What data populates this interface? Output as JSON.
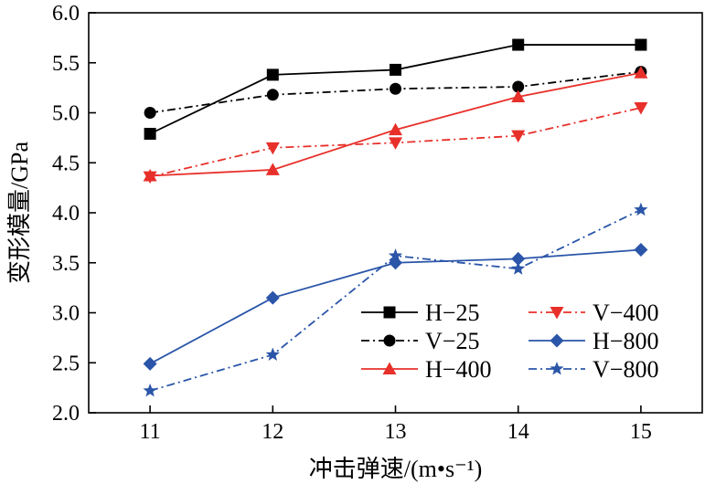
{
  "chart_data": {
    "type": "line",
    "xlabel": "冲击弹速/(m•s⁻¹)",
    "ylabel": "变形模量/GPa",
    "x": [
      11,
      12,
      13,
      14,
      15
    ],
    "xlim": [
      10.5,
      15.5
    ],
    "ylim": [
      2.0,
      6.0
    ],
    "x_ticks": [
      "11",
      "12",
      "13",
      "14",
      "15"
    ],
    "y_ticks": [
      "2.0",
      "2.5",
      "3.0",
      "3.5",
      "4.0",
      "4.5",
      "5.0",
      "5.5",
      "6.0"
    ],
    "grid": false,
    "legend_position": "bottom-right",
    "series": [
      {
        "name": "H−25",
        "values": [
          4.79,
          5.38,
          5.43,
          5.68,
          5.68
        ],
        "color": "#000000",
        "line": "solid",
        "marker": "square"
      },
      {
        "name": "V−25",
        "values": [
          5.0,
          5.18,
          5.24,
          5.26,
          5.41
        ],
        "color": "#000000",
        "line": "dashdot",
        "marker": "circle"
      },
      {
        "name": "H−400",
        "values": [
          4.37,
          4.43,
          4.83,
          5.16,
          5.4
        ],
        "color": "#e8302a",
        "line": "solid",
        "marker": "triangle-up"
      },
      {
        "name": "V−400",
        "values": [
          4.36,
          4.65,
          4.7,
          4.77,
          5.05
        ],
        "color": "#e8302a",
        "line": "dashdot",
        "marker": "triangle-down"
      },
      {
        "name": "H−800",
        "values": [
          2.49,
          3.15,
          3.5,
          3.54,
          3.63
        ],
        "color": "#2a55a8",
        "line": "solid",
        "marker": "diamond"
      },
      {
        "name": "V−800",
        "values": [
          2.22,
          2.58,
          3.57,
          3.44,
          4.03
        ],
        "color": "#2a55a8",
        "line": "dashdot",
        "marker": "star"
      }
    ]
  }
}
